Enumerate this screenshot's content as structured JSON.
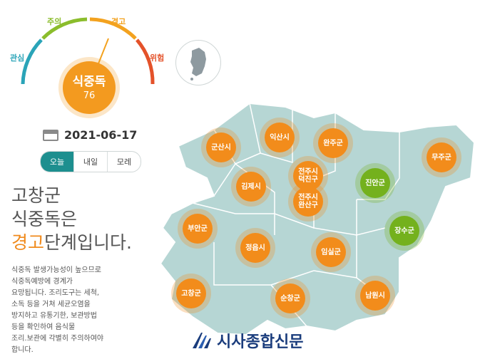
{
  "gauge": {
    "labels": {
      "interest": "관심",
      "caution": "주의",
      "warning": "경고",
      "danger": "위험"
    },
    "current_level": "식중독",
    "current_value": "76",
    "colors": {
      "interest": "#2aa4b8",
      "caution": "#8bbd2c",
      "warning": "#f3a21f",
      "danger": "#e4522a"
    }
  },
  "korea_map_icon": "south-korea-map-icon",
  "date": "2021-06-17",
  "tabs": [
    {
      "label": "오늘",
      "active": true
    },
    {
      "label": "내일",
      "active": false
    },
    {
      "label": "모레",
      "active": false
    }
  ],
  "headline": {
    "line1": "고창군",
    "line2": "식중독은",
    "accent": "경고",
    "line3_rest": "단계입니다."
  },
  "description": [
    "식중독 발생가능성이 높으므로",
    "식중독예방에 경계가",
    "요망됩니다. 조리도구는 세척,",
    "소독 등을 거쳐 세균오염을",
    "방지하고 유통기한, 보관방법",
    "등을 확인하여 음식물",
    "조리.보관에 각별히 주의하여야",
    "합니다."
  ],
  "regions": [
    {
      "name": "군산시",
      "level": "orange"
    },
    {
      "name": "익산시",
      "level": "orange"
    },
    {
      "name": "완주군",
      "level": "orange"
    },
    {
      "name": "무주군",
      "level": "orange"
    },
    {
      "name": "김제시",
      "level": "orange"
    },
    {
      "name": "전주시\n덕진구",
      "level": "orange"
    },
    {
      "name": "진안군",
      "level": "green"
    },
    {
      "name": "전주시\n완산구",
      "level": "orange"
    },
    {
      "name": "부안군",
      "level": "orange"
    },
    {
      "name": "장수군",
      "level": "green"
    },
    {
      "name": "정읍시",
      "level": "orange"
    },
    {
      "name": "임실군",
      "level": "orange"
    },
    {
      "name": "고창군",
      "level": "orange"
    },
    {
      "name": "순창군",
      "level": "orange"
    },
    {
      "name": "남원시",
      "level": "orange"
    }
  ],
  "watermark": "시사종합신문"
}
